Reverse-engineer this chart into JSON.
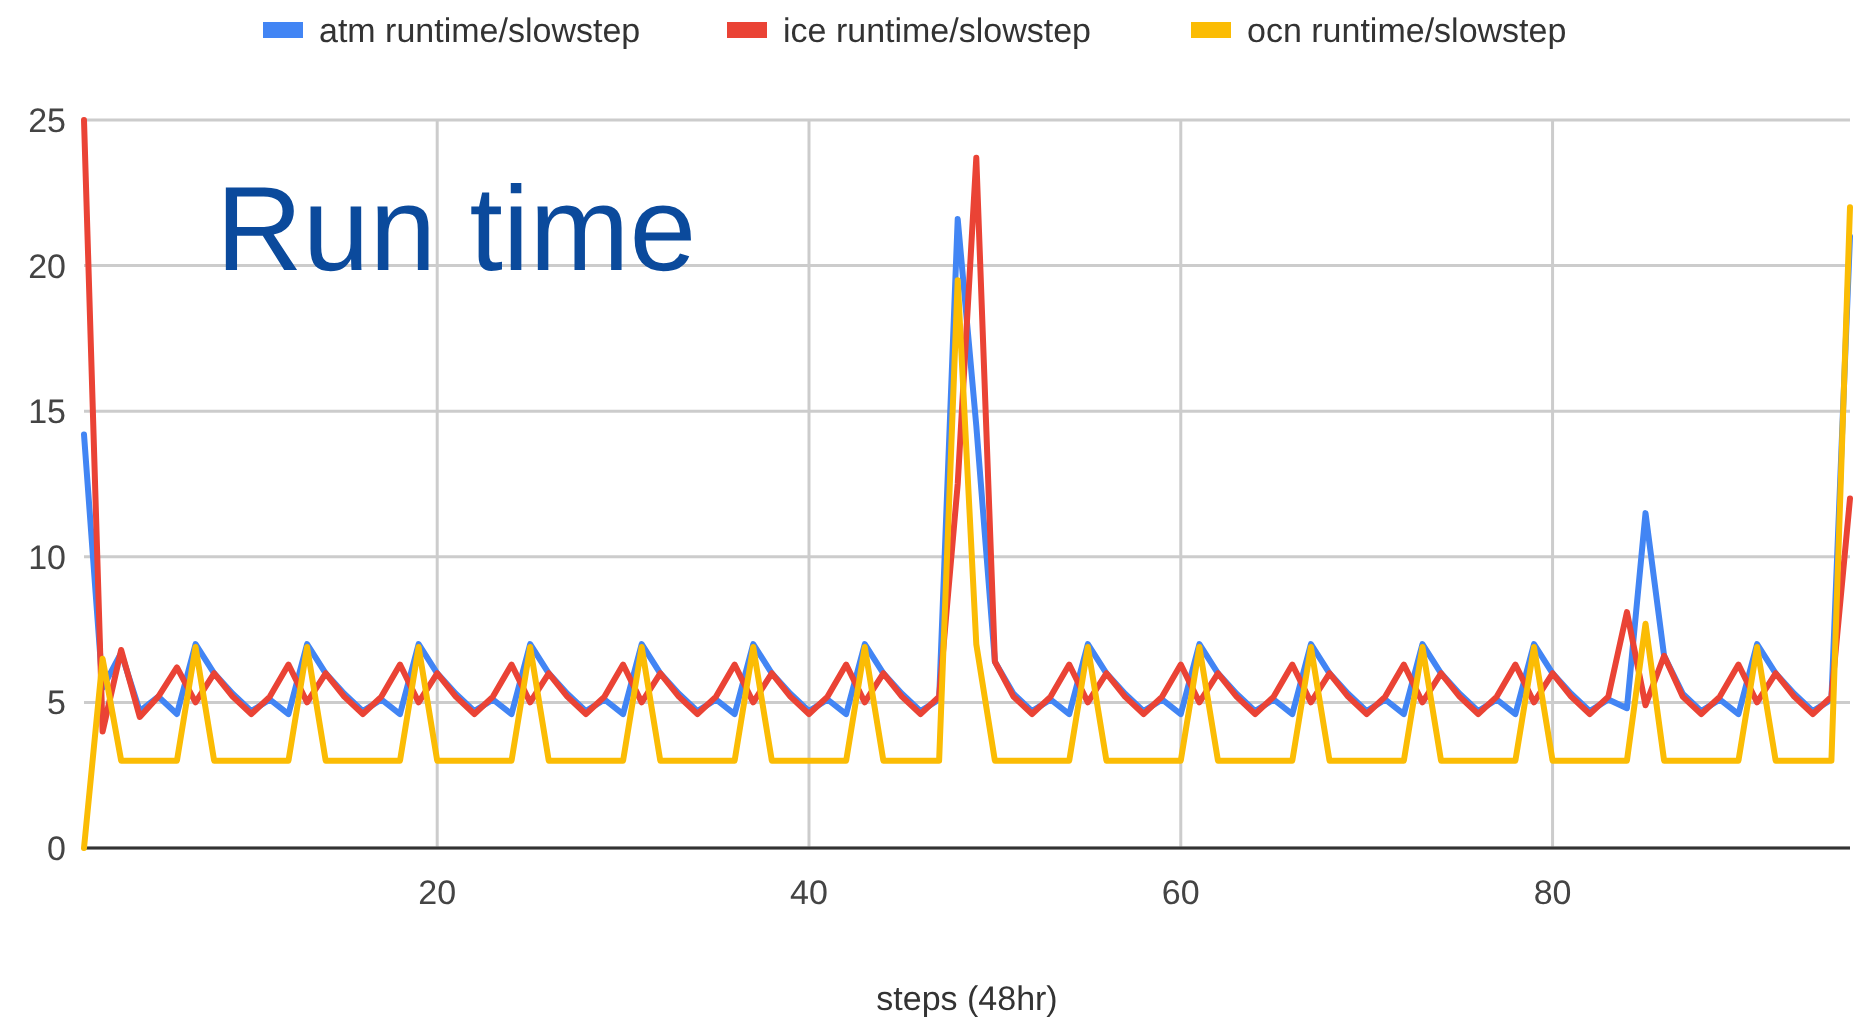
{
  "chart_data": {
    "type": "line",
    "title": "Run time",
    "xlabel": "steps (48hr)",
    "x": [
      1,
      2,
      3,
      4,
      5,
      6,
      7,
      8,
      9,
      10,
      11,
      12,
      13,
      14,
      15,
      16,
      17,
      18,
      19,
      20,
      21,
      22,
      23,
      24,
      25,
      26,
      27,
      28,
      29,
      30,
      31,
      32,
      33,
      34,
      35,
      36,
      37,
      38,
      39,
      40,
      41,
      42,
      43,
      44,
      45,
      46,
      47,
      48,
      49,
      50,
      51,
      52,
      53,
      54,
      55,
      56,
      57,
      58,
      59,
      60,
      61,
      62,
      63,
      64,
      65,
      66,
      67,
      68,
      69,
      70,
      71,
      72,
      73,
      74,
      75,
      76,
      77,
      78,
      79,
      80,
      81,
      82,
      83,
      84,
      85,
      86,
      87,
      88,
      89,
      90,
      91,
      92,
      93,
      94,
      95,
      96
    ],
    "series": [
      {
        "name": "atm runtime/slowstep",
        "color": "#4285f4",
        "values": [
          14.2,
          5.5,
          6.7,
          4.7,
          5.2,
          4.6,
          7.0,
          6.0,
          5.3,
          4.7,
          5.1,
          4.6,
          7.0,
          6.0,
          5.3,
          4.7,
          5.1,
          4.6,
          7.0,
          6.0,
          5.3,
          4.7,
          5.1,
          4.6,
          7.0,
          6.0,
          5.3,
          4.7,
          5.1,
          4.6,
          7.0,
          6.0,
          5.3,
          4.7,
          5.1,
          4.6,
          7.0,
          6.0,
          5.3,
          4.7,
          5.1,
          4.6,
          7.0,
          6.0,
          5.3,
          4.7,
          5.1,
          21.6,
          14.5,
          6.4,
          5.3,
          4.7,
          5.1,
          4.6,
          7.0,
          6.0,
          5.3,
          4.7,
          5.1,
          4.6,
          7.0,
          6.0,
          5.3,
          4.7,
          5.1,
          4.6,
          7.0,
          6.0,
          5.3,
          4.7,
          5.1,
          4.6,
          7.0,
          6.0,
          5.3,
          4.7,
          5.1,
          4.6,
          7.0,
          6.0,
          5.3,
          4.7,
          5.1,
          4.8,
          11.5,
          6.6,
          5.3,
          4.7,
          5.1,
          4.6,
          7.0,
          6.0,
          5.3,
          4.7,
          5.1,
          21
        ]
      },
      {
        "name": "ice runtime/slowstep",
        "color": "#ea4335",
        "values": [
          25,
          4.0,
          6.8,
          4.5,
          5.2,
          6.2,
          5.0,
          6.0,
          5.2,
          4.6,
          5.2,
          6.3,
          5.0,
          6.0,
          5.2,
          4.6,
          5.2,
          6.3,
          5.0,
          6.0,
          5.2,
          4.6,
          5.2,
          6.3,
          5.0,
          6.0,
          5.2,
          4.6,
          5.2,
          6.3,
          5.0,
          6.0,
          5.2,
          4.6,
          5.2,
          6.3,
          5.0,
          6.0,
          5.2,
          4.6,
          5.2,
          6.3,
          5.0,
          6.0,
          5.2,
          4.6,
          5.2,
          12.5,
          23.7,
          6.4,
          5.2,
          4.6,
          5.2,
          6.3,
          5.0,
          6.0,
          5.2,
          4.6,
          5.2,
          6.3,
          5.0,
          6.0,
          5.2,
          4.6,
          5.2,
          6.3,
          5.0,
          6.0,
          5.2,
          4.6,
          5.2,
          6.3,
          5.0,
          6.0,
          5.2,
          4.6,
          5.2,
          6.3,
          5.0,
          6.0,
          5.2,
          4.6,
          5.2,
          8.1,
          4.9,
          6.6,
          5.2,
          4.6,
          5.2,
          6.3,
          5.0,
          6.0,
          5.2,
          4.6,
          5.2,
          12
        ]
      },
      {
        "name": "ocn runtime/slowstep",
        "color": "#fbbc04",
        "values": [
          0,
          6.5,
          3,
          3,
          3,
          3,
          6.9,
          3,
          3,
          3,
          3,
          3,
          6.9,
          3,
          3,
          3,
          3,
          3,
          6.9,
          3,
          3,
          3,
          3,
          3,
          6.9,
          3,
          3,
          3,
          3,
          3,
          6.9,
          3,
          3,
          3,
          3,
          3,
          6.9,
          3,
          3,
          3,
          3,
          3,
          6.9,
          3,
          3,
          3,
          3,
          19.5,
          7.0,
          3,
          3,
          3,
          3,
          3,
          6.9,
          3,
          3,
          3,
          3,
          3,
          6.9,
          3,
          3,
          3,
          3,
          3,
          6.9,
          3,
          3,
          3,
          3,
          3,
          6.9,
          3,
          3,
          3,
          3,
          3,
          6.9,
          3,
          3,
          3,
          3,
          3,
          7.7,
          3,
          3,
          3,
          3,
          3,
          6.9,
          3,
          3,
          3,
          3,
          22
        ]
      }
    ],
    "xlim": [
      1,
      96
    ],
    "xticks": [
      20,
      40,
      60,
      80
    ],
    "ylim": [
      0,
      25
    ],
    "yticks": [
      0,
      5,
      10,
      15,
      20,
      25
    ],
    "grid": true,
    "legend": "top"
  }
}
